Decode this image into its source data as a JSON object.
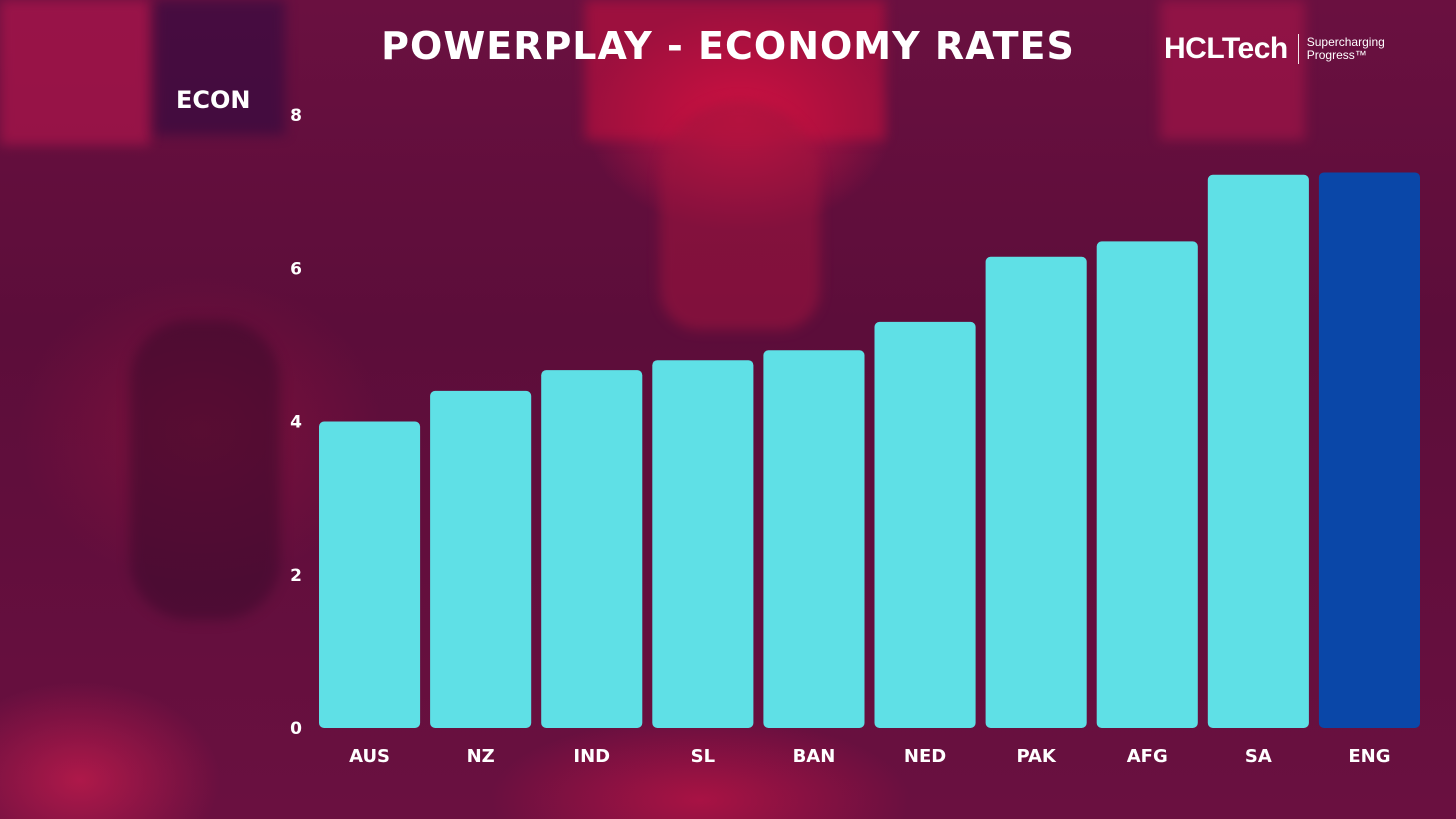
{
  "brand": {
    "name": "HCLTech",
    "tagline_line1": "Supercharging",
    "tagline_line2": "Progress™"
  },
  "chart_data": {
    "type": "bar",
    "title": "POWERPLAY - ECONOMY RATES",
    "ylabel": "ECON",
    "xlabel": "",
    "categories": [
      "AUS",
      "NZ",
      "IND",
      "SL",
      "BAN",
      "NED",
      "PAK",
      "AFG",
      "SA",
      "ENG"
    ],
    "values": [
      4.0,
      4.4,
      4.67,
      4.8,
      4.93,
      5.3,
      6.15,
      6.35,
      7.22,
      7.25
    ],
    "ylim": [
      0,
      8
    ],
    "yticks": [
      0,
      2,
      4,
      6,
      8
    ],
    "grid": false,
    "legend": "none",
    "colors": {
      "default": "#5fe0e6",
      "highlight": "#0a47a8"
    },
    "highlight_category": "ENG"
  }
}
